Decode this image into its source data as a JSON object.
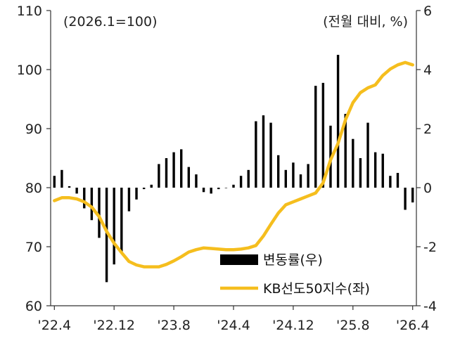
{
  "chart_data": {
    "type": "bar+line",
    "left_note": "(2026.1=100)",
    "right_note": "(전월 대비, %)",
    "left_axis": {
      "ylim": [
        60,
        110
      ],
      "ticks": [
        "110",
        "100",
        "90",
        "80",
        "70",
        "60"
      ]
    },
    "right_axis": {
      "ylim": [
        -4,
        6
      ],
      "ticks": [
        "6",
        "4",
        "2",
        "0",
        "-2",
        "-4"
      ]
    },
    "x_tick_labels": [
      "'22.4",
      "'22.12",
      "'23.8",
      "'24.4",
      "'24.12",
      "'25.8",
      "'26.4"
    ],
    "colors": {
      "bars": "#000000",
      "line": "#F5BE1E",
      "axis": "#333333"
    },
    "legend": [
      {
        "name": "변동률(우)",
        "kind": "bar"
      },
      {
        "name": "KB선도50지수(좌)",
        "kind": "line"
      }
    ],
    "series": [
      {
        "name": "변동률(우)",
        "axis": "right",
        "type": "bar",
        "values": [
          0.4,
          0.6,
          0.05,
          -0.2,
          -0.7,
          -1.1,
          -1.7,
          -3.2,
          -2.6,
          -2.2,
          -0.8,
          -0.4,
          -0.05,
          0.1,
          0.8,
          1.0,
          1.2,
          1.3,
          0.7,
          0.45,
          -0.15,
          -0.2,
          -0.05,
          0.0,
          0.1,
          0.4,
          0.6,
          2.25,
          2.45,
          2.2,
          1.1,
          0.6,
          0.85,
          0.45,
          0.8,
          3.45,
          3.55,
          2.1,
          4.5,
          2.5,
          1.65,
          1.0,
          2.2,
          1.2,
          1.15,
          0.4,
          0.5,
          -0.75,
          -0.5
        ]
      },
      {
        "name": "KB선도50지수(좌)",
        "axis": "left",
        "type": "line",
        "values": [
          77.8,
          78.3,
          78.3,
          78.1,
          77.6,
          76.7,
          75.1,
          72.6,
          70.6,
          69.0,
          67.5,
          66.9,
          66.6,
          66.6,
          66.6,
          67.0,
          67.6,
          68.3,
          69.1,
          69.5,
          69.8,
          69.7,
          69.6,
          69.5,
          69.5,
          69.6,
          69.8,
          70.2,
          71.8,
          73.8,
          75.7,
          77.1,
          77.6,
          78.1,
          78.6,
          79.1,
          80.8,
          84.7,
          87.5,
          91.5,
          94.4,
          96.1,
          96.9,
          97.4,
          99.0,
          100.1,
          100.8,
          101.2,
          100.8
        ]
      }
    ]
  }
}
